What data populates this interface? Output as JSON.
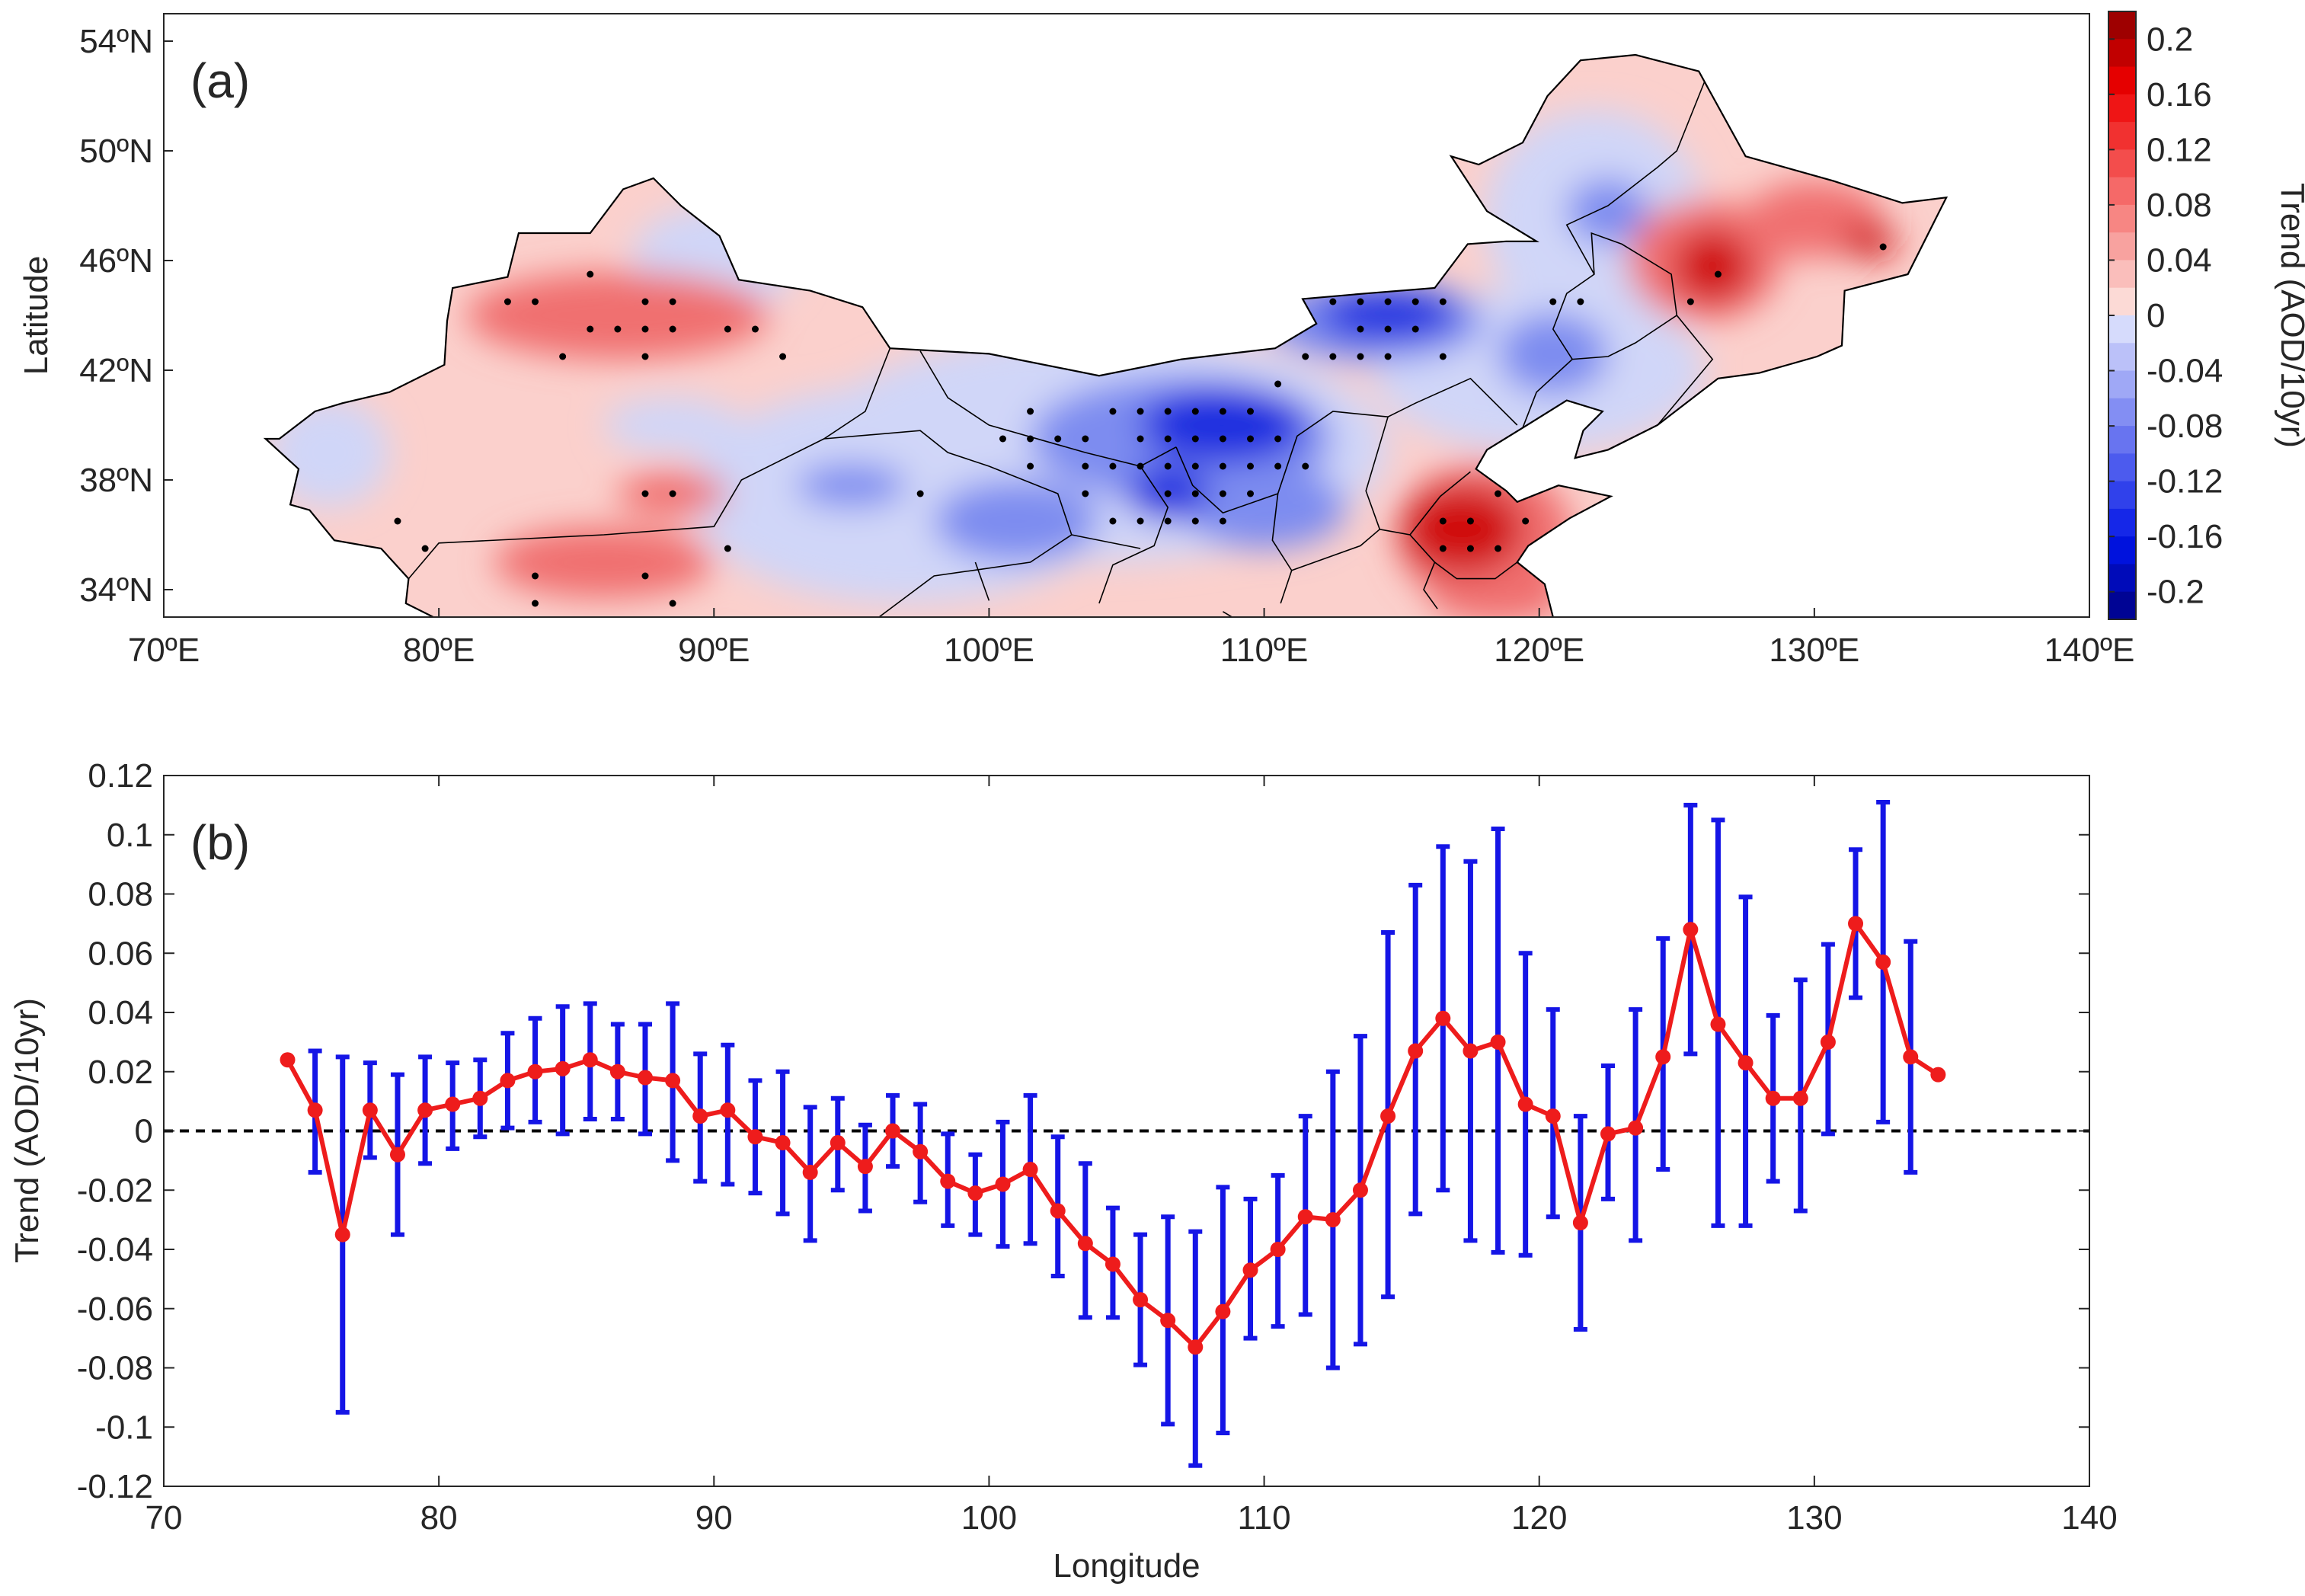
{
  "panel_a": {
    "label": "(a)",
    "ylabel": "Latitude",
    "colorbar_label": "Trend (AOD/10yr)",
    "colorbar_ticks": [
      "0.2",
      "0.16",
      "0.12",
      "0.08",
      "0.04",
      "0",
      "-0.04",
      "-0.08",
      "-0.12",
      "-0.16",
      "-0.2"
    ],
    "xticks": [
      "70ºE",
      "80ºE",
      "90ºE",
      "100ºE",
      "110ºE",
      "120ºE",
      "130ºE",
      "140ºE"
    ],
    "yticks": [
      "54ºN",
      "50ºN",
      "46ºN",
      "42ºN",
      "38ºN",
      "34ºN"
    ],
    "colors": {
      "strong_red": "#d01010",
      "mid_red": "#f07070",
      "light_red": "#fbd0cc",
      "light_blue": "#d0d6f8",
      "mid_blue": "#7d8cf0",
      "strong_blue": "#1a2ee0",
      "ocean": "#ffffff",
      "border": "#000000"
    }
  },
  "chart_data": [
    {
      "type": "map-contour",
      "title": "(a)",
      "xlabel": "",
      "ylabel": "Latitude",
      "colorbar": {
        "label": "Trend (AOD/10yr)",
        "range": [
          -0.22,
          0.22
        ],
        "step": 0.02
      },
      "xlim": [
        70,
        140
      ],
      "ylim": [
        33,
        55
      ],
      "significant_points": [
        [
          82.5,
          44.5
        ],
        [
          83.5,
          44.5
        ],
        [
          85.5,
          45.5
        ],
        [
          87.5,
          44.5
        ],
        [
          88.5,
          44.5
        ],
        [
          85.5,
          43.5
        ],
        [
          86.5,
          43.5
        ],
        [
          87.5,
          43.5
        ],
        [
          88.5,
          43.5
        ],
        [
          90.5,
          43.5
        ],
        [
          91.5,
          43.5
        ],
        [
          84.5,
          42.5
        ],
        [
          87.5,
          42.5
        ],
        [
          92.5,
          42.5
        ],
        [
          87.5,
          37.5
        ],
        [
          88.5,
          37.5
        ],
        [
          90.5,
          35.5
        ],
        [
          83.5,
          34.5
        ],
        [
          87.5,
          34.5
        ],
        [
          83.5,
          33.5
        ],
        [
          88.5,
          33.5
        ],
        [
          78.5,
          36.5
        ],
        [
          79.5,
          35.5
        ],
        [
          112.5,
          44.5
        ],
        [
          113.5,
          44.5
        ],
        [
          114.5,
          44.5
        ],
        [
          115.5,
          44.5
        ],
        [
          116.5,
          44.5
        ],
        [
          113.5,
          43.5
        ],
        [
          114.5,
          43.5
        ],
        [
          115.5,
          43.5
        ],
        [
          111.5,
          42.5
        ],
        [
          112.5,
          42.5
        ],
        [
          113.5,
          42.5
        ],
        [
          114.5,
          42.5
        ],
        [
          116.5,
          42.5
        ],
        [
          110.5,
          41.5
        ],
        [
          101.5,
          40.5
        ],
        [
          104.5,
          40.5
        ],
        [
          105.5,
          40.5
        ],
        [
          106.5,
          40.5
        ],
        [
          107.5,
          40.5
        ],
        [
          108.5,
          40.5
        ],
        [
          109.5,
          40.5
        ],
        [
          100.5,
          39.5
        ],
        [
          101.5,
          39.5
        ],
        [
          102.5,
          39.5
        ],
        [
          103.5,
          39.5
        ],
        [
          105.5,
          39.5
        ],
        [
          106.5,
          39.5
        ],
        [
          107.5,
          39.5
        ],
        [
          108.5,
          39.5
        ],
        [
          109.5,
          39.5
        ],
        [
          110.5,
          39.5
        ],
        [
          101.5,
          38.5
        ],
        [
          103.5,
          38.5
        ],
        [
          104.5,
          38.5
        ],
        [
          105.5,
          38.5
        ],
        [
          106.5,
          38.5
        ],
        [
          107.5,
          38.5
        ],
        [
          108.5,
          38.5
        ],
        [
          109.5,
          38.5
        ],
        [
          110.5,
          38.5
        ],
        [
          111.5,
          38.5
        ],
        [
          103.5,
          37.5
        ],
        [
          106.5,
          37.5
        ],
        [
          107.5,
          37.5
        ],
        [
          108.5,
          37.5
        ],
        [
          109.5,
          37.5
        ],
        [
          97.5,
          37.5
        ],
        [
          104.5,
          36.5
        ],
        [
          105.5,
          36.5
        ],
        [
          106.5,
          36.5
        ],
        [
          107.5,
          36.5
        ],
        [
          108.5,
          36.5
        ],
        [
          118.5,
          37.5
        ],
        [
          116.5,
          36.5
        ],
        [
          117.5,
          36.5
        ],
        [
          119.5,
          36.5
        ],
        [
          116.5,
          35.5
        ],
        [
          117.5,
          35.5
        ],
        [
          118.5,
          35.5
        ],
        [
          120.5,
          44.5
        ],
        [
          121.5,
          44.5
        ],
        [
          126.5,
          45.5
        ],
        [
          125.5,
          44.5
        ],
        [
          132.5,
          46.5
        ]
      ]
    },
    {
      "type": "line",
      "title": "(b)",
      "xlabel": "Longitude",
      "ylabel": "Trend (AOD/10yr)",
      "xlim": [
        70,
        140
      ],
      "ylim": [
        -0.12,
        0.12
      ],
      "xticks": [
        "70",
        "80",
        "90",
        "100",
        "110",
        "120",
        "130",
        "140"
      ],
      "yticks": [
        "0.12",
        "0.1",
        "0.08",
        "0.06",
        "0.04",
        "0.02",
        "0",
        "-0.02",
        "-0.04",
        "-0.06",
        "-0.08",
        "-0.1",
        "-0.12"
      ],
      "reference_line": 0,
      "series": [
        {
          "name": "Trend",
          "x": [
            74.5,
            75.5,
            76.5,
            77.5,
            78.5,
            79.5,
            80.5,
            81.5,
            82.5,
            83.5,
            84.5,
            85.5,
            86.5,
            87.5,
            88.5,
            89.5,
            90.5,
            91.5,
            92.5,
            93.5,
            94.5,
            95.5,
            96.5,
            97.5,
            98.5,
            99.5,
            100.5,
            101.5,
            102.5,
            103.5,
            104.5,
            105.5,
            106.5,
            107.5,
            108.5,
            109.5,
            110.5,
            111.5,
            112.5,
            113.5,
            114.5,
            115.5,
            116.5,
            117.5,
            118.5,
            119.5,
            120.5,
            121.5,
            122.5,
            123.5,
            124.5,
            125.5,
            126.5,
            127.5,
            128.5,
            129.5,
            130.5,
            131.5,
            132.5,
            133.5,
            134.5
          ],
          "values": [
            0.024,
            0.007,
            -0.035,
            0.007,
            -0.008,
            0.007,
            0.009,
            0.011,
            0.017,
            0.02,
            0.021,
            0.024,
            0.02,
            0.018,
            0.017,
            0.005,
            0.007,
            -0.002,
            -0.004,
            -0.014,
            -0.004,
            -0.012,
            0.0,
            -0.007,
            -0.017,
            -0.021,
            -0.018,
            -0.013,
            -0.027,
            -0.038,
            -0.045,
            -0.057,
            -0.064,
            -0.073,
            -0.061,
            -0.047,
            -0.04,
            -0.029,
            -0.03,
            -0.02,
            0.005,
            0.027,
            0.038,
            0.027,
            0.03,
            0.009,
            0.005,
            -0.031,
            -0.001,
            0.001,
            0.025,
            0.068,
            0.036,
            0.023,
            0.011,
            0.011,
            0.03,
            0.07,
            0.057,
            0.025,
            0.019
          ],
          "lower": [
            null,
            -0.014,
            -0.095,
            -0.009,
            -0.035,
            -0.011,
            -0.006,
            -0.002,
            0.001,
            0.003,
            -0.001,
            0.004,
            0.004,
            -0.001,
            -0.01,
            -0.017,
            -0.018,
            -0.021,
            -0.028,
            -0.037,
            -0.02,
            -0.027,
            -0.012,
            -0.024,
            -0.032,
            -0.035,
            -0.039,
            -0.038,
            -0.049,
            -0.063,
            -0.063,
            -0.079,
            -0.099,
            -0.113,
            -0.102,
            -0.07,
            -0.066,
            -0.062,
            -0.08,
            -0.072,
            -0.056,
            -0.028,
            -0.02,
            -0.037,
            -0.041,
            -0.042,
            -0.029,
            -0.067,
            -0.023,
            -0.037,
            -0.013,
            0.026,
            -0.032,
            -0.032,
            -0.017,
            -0.027,
            -0.001,
            0.045,
            0.003,
            -0.014,
            null
          ],
          "upper": [
            null,
            0.027,
            0.025,
            0.023,
            0.019,
            0.025,
            0.023,
            0.024,
            0.033,
            0.038,
            0.042,
            0.043,
            0.036,
            0.036,
            0.043,
            0.026,
            0.029,
            0.017,
            0.02,
            0.008,
            0.011,
            0.002,
            0.012,
            0.009,
            -0.001,
            -0.008,
            0.003,
            0.012,
            -0.002,
            -0.011,
            -0.026,
            -0.035,
            -0.029,
            -0.034,
            -0.019,
            -0.023,
            -0.015,
            0.005,
            0.02,
            0.032,
            0.067,
            0.083,
            0.096,
            0.091,
            0.102,
            0.06,
            0.041,
            0.005,
            0.022,
            0.041,
            0.065,
            0.11,
            0.105,
            0.079,
            0.039,
            0.051,
            0.063,
            0.095,
            0.111,
            0.064,
            null
          ],
          "line_color": "#ee1c1c",
          "errorbar_color": "#1515e6"
        }
      ]
    }
  ],
  "panel_b": {
    "label": "(b)",
    "xlabel": "Longitude",
    "ylabel": "Trend (AOD/10yr)"
  }
}
